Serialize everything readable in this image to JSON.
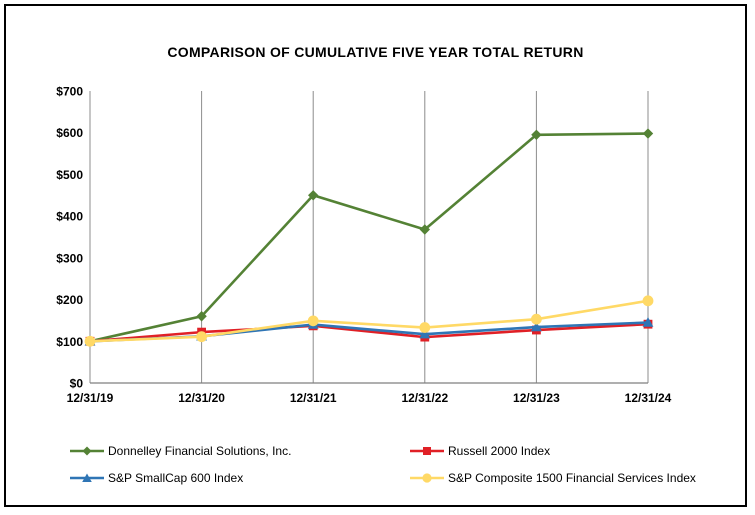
{
  "chart_data": {
    "type": "line",
    "title": "COMPARISON OF CUMULATIVE FIVE YEAR TOTAL RETURN",
    "categories": [
      "12/31/19",
      "12/31/20",
      "12/31/21",
      "12/31/22",
      "12/31/23",
      "12/31/24"
    ],
    "series": [
      {
        "name": "Donnelley Financial Solutions, Inc.",
        "color": "#548235",
        "marker": "diamond",
        "values": [
          100,
          160,
          450,
          368,
          595,
          598
        ]
      },
      {
        "name": "Russell 2000 Index",
        "color": "#E02026",
        "marker": "square",
        "values": [
          100,
          122,
          137,
          110,
          127,
          141
        ]
      },
      {
        "name": "S&P SmallCap 600 Index",
        "color": "#2F75B5",
        "marker": "triangle",
        "values": [
          100,
          112,
          140,
          117,
          134,
          145
        ]
      },
      {
        "name": "S&P Composite 1500 Financial Services Index",
        "color": "#FFD966",
        "marker": "circle",
        "values": [
          100,
          111,
          149,
          133,
          153,
          197
        ]
      }
    ],
    "y_axis": {
      "min": 0,
      "max": 700,
      "step": 100,
      "tick_labels": [
        "$0",
        "$100",
        "$200",
        "$300",
        "$400",
        "$500",
        "$600",
        "$700"
      ]
    },
    "grid": "vertical-only",
    "legend_position": "bottom",
    "axis_color": "#7F7F7F",
    "gridline_color": "#8C8C8C",
    "text_color": "#000000"
  }
}
